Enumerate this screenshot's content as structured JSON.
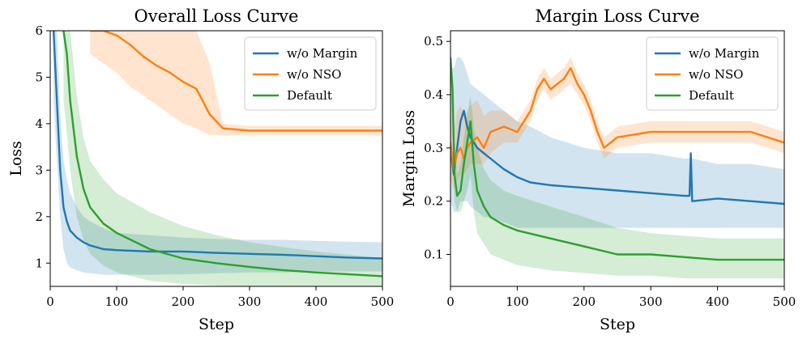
{
  "chart_data": [
    {
      "type": "line",
      "title": "Overall Loss Curve",
      "xlabel": "Step",
      "ylabel": "Loss",
      "xlim": [
        0,
        500
      ],
      "ylim": [
        0.5,
        6
      ],
      "xticks": [
        0,
        100,
        200,
        300,
        400,
        500
      ],
      "yticks": [
        1,
        2,
        3,
        4,
        5,
        6
      ],
      "grid": false,
      "legend": "top-right",
      "series": [
        {
          "name": "w/o Margin",
          "color": "#1f77b4",
          "x": [
            5,
            10,
            15,
            20,
            25,
            30,
            40,
            50,
            60,
            80,
            100,
            150,
            200,
            250,
            300,
            350,
            400,
            450,
            500
          ],
          "y": [
            6.0,
            4.5,
            3.0,
            2.2,
            1.9,
            1.7,
            1.55,
            1.45,
            1.38,
            1.3,
            1.28,
            1.25,
            1.25,
            1.22,
            1.2,
            1.18,
            1.15,
            1.12,
            1.1
          ],
          "band_lower": [
            4.5,
            3.2,
            2.0,
            1.3,
            1.0,
            0.9,
            0.85,
            0.8,
            0.78,
            0.75,
            0.75,
            0.75,
            0.76,
            0.78,
            0.8,
            0.8,
            0.82,
            0.82,
            0.82
          ],
          "band_upper": [
            6.0,
            6.0,
            4.2,
            3.2,
            2.8,
            2.5,
            2.2,
            2.0,
            1.9,
            1.75,
            1.65,
            1.6,
            1.55,
            1.52,
            1.5,
            1.5,
            1.48,
            1.46,
            1.45
          ]
        },
        {
          "name": "w/o NSO",
          "color": "#ff7f0e",
          "x": [
            60,
            80,
            100,
            120,
            140,
            160,
            180,
            200,
            220,
            240,
            260,
            300,
            350,
            400,
            450,
            500
          ],
          "y": [
            6.0,
            6.0,
            5.9,
            5.7,
            5.45,
            5.25,
            5.1,
            4.9,
            4.75,
            4.2,
            3.9,
            3.85,
            3.85,
            3.85,
            3.85,
            3.85
          ],
          "band_lower": [
            5.5,
            5.3,
            5.1,
            4.8,
            4.6,
            4.4,
            4.2,
            4.0,
            3.9,
            3.75,
            3.75,
            3.75,
            3.75,
            3.75,
            3.75,
            3.75
          ],
          "band_upper": [
            6.0,
            6.0,
            6.0,
            6.0,
            6.0,
            6.0,
            6.0,
            6.0,
            6.0,
            5.3,
            4.0,
            3.95,
            3.95,
            3.95,
            3.95,
            3.95
          ]
        },
        {
          "name": "Default",
          "color": "#2ca02c",
          "x": [
            20,
            25,
            30,
            40,
            50,
            60,
            80,
            100,
            150,
            200,
            250,
            300,
            350,
            400,
            450,
            500
          ],
          "y": [
            6.0,
            5.5,
            4.5,
            3.3,
            2.6,
            2.2,
            1.85,
            1.65,
            1.3,
            1.1,
            1.0,
            0.92,
            0.85,
            0.8,
            0.76,
            0.72
          ],
          "band_lower": [
            4.5,
            3.8,
            3.0,
            2.0,
            1.5,
            1.2,
            0.95,
            0.8,
            0.62,
            0.55,
            0.52,
            0.5,
            0.5,
            0.5,
            0.5,
            0.5
          ],
          "band_upper": [
            6.0,
            6.0,
            6.0,
            4.6,
            3.7,
            3.2,
            2.8,
            2.5,
            2.1,
            1.8,
            1.6,
            1.45,
            1.35,
            1.25,
            1.18,
            1.1
          ]
        }
      ]
    },
    {
      "type": "line",
      "title": "Margin Loss Curve",
      "xlabel": "Step",
      "ylabel": "Margin Loss",
      "xlim": [
        0,
        500
      ],
      "ylim": [
        0.04,
        0.52
      ],
      "xticks": [
        0,
        100,
        200,
        300,
        400,
        500
      ],
      "yticks": [
        0.1,
        0.2,
        0.3,
        0.4,
        0.5
      ],
      "grid": false,
      "legend": "top-right",
      "series": [
        {
          "name": "w/o Margin",
          "color": "#1f77b4",
          "x": [
            0,
            5,
            10,
            15,
            20,
            25,
            30,
            40,
            50,
            60,
            80,
            100,
            120,
            150,
            200,
            250,
            300,
            350,
            358,
            360,
            362,
            400,
            450,
            500
          ],
          "y": [
            0.3,
            0.25,
            0.3,
            0.35,
            0.37,
            0.34,
            0.32,
            0.3,
            0.29,
            0.28,
            0.26,
            0.245,
            0.235,
            0.23,
            0.225,
            0.22,
            0.215,
            0.21,
            0.21,
            0.29,
            0.2,
            0.205,
            0.2,
            0.195
          ],
          "band_lower": [
            0.2,
            0.18,
            0.18,
            0.2,
            0.2,
            0.2,
            0.19,
            0.18,
            0.17,
            0.17,
            0.16,
            0.15,
            0.15,
            0.15,
            0.15,
            0.15,
            0.15,
            0.15,
            0.15,
            0.15,
            0.15,
            0.15,
            0.15,
            0.15
          ],
          "band_upper": [
            0.45,
            0.45,
            0.47,
            0.47,
            0.46,
            0.44,
            0.42,
            0.41,
            0.4,
            0.39,
            0.37,
            0.35,
            0.34,
            0.32,
            0.3,
            0.29,
            0.29,
            0.28,
            0.28,
            0.28,
            0.28,
            0.27,
            0.27,
            0.26
          ]
        },
        {
          "name": "w/o NSO",
          "color": "#ff7f0e",
          "x": [
            0,
            5,
            10,
            15,
            20,
            25,
            30,
            40,
            50,
            60,
            80,
            100,
            120,
            130,
            140,
            150,
            160,
            170,
            180,
            190,
            200,
            210,
            220,
            230,
            250,
            300,
            350,
            400,
            450,
            500
          ],
          "y": [
            0.31,
            0.26,
            0.29,
            0.3,
            0.28,
            0.3,
            0.31,
            0.32,
            0.3,
            0.33,
            0.34,
            0.33,
            0.37,
            0.41,
            0.43,
            0.41,
            0.42,
            0.43,
            0.45,
            0.42,
            0.4,
            0.37,
            0.33,
            0.3,
            0.32,
            0.33,
            0.33,
            0.33,
            0.33,
            0.31
          ],
          "band_lower": [
            0.24,
            0.22,
            0.24,
            0.25,
            0.25,
            0.26,
            0.27,
            0.27,
            0.27,
            0.29,
            0.31,
            0.31,
            0.35,
            0.39,
            0.41,
            0.39,
            0.4,
            0.41,
            0.42,
            0.4,
            0.38,
            0.35,
            0.31,
            0.28,
            0.3,
            0.31,
            0.31,
            0.31,
            0.31,
            0.29
          ],
          "band_upper": [
            0.38,
            0.33,
            0.37,
            0.38,
            0.36,
            0.37,
            0.38,
            0.39,
            0.36,
            0.37,
            0.37,
            0.35,
            0.39,
            0.43,
            0.45,
            0.43,
            0.44,
            0.45,
            0.47,
            0.44,
            0.42,
            0.39,
            0.35,
            0.32,
            0.34,
            0.35,
            0.35,
            0.35,
            0.35,
            0.33
          ]
        },
        {
          "name": "Default",
          "color": "#2ca02c",
          "x": [
            0,
            3,
            6,
            10,
            15,
            20,
            25,
            30,
            35,
            40,
            50,
            60,
            80,
            100,
            150,
            200,
            250,
            300,
            350,
            400,
            450,
            500
          ],
          "y": [
            0.47,
            0.41,
            0.25,
            0.21,
            0.22,
            0.27,
            0.31,
            0.35,
            0.27,
            0.22,
            0.19,
            0.17,
            0.155,
            0.145,
            0.13,
            0.115,
            0.1,
            0.1,
            0.095,
            0.09,
            0.09,
            0.09
          ],
          "band_lower": [
            0.42,
            0.33,
            0.2,
            0.18,
            0.18,
            0.2,
            0.22,
            0.25,
            0.18,
            0.14,
            0.12,
            0.1,
            0.09,
            0.08,
            0.07,
            0.065,
            0.06,
            0.06,
            0.055,
            0.055,
            0.055,
            0.055
          ],
          "band_upper": [
            0.48,
            0.44,
            0.3,
            0.25,
            0.27,
            0.32,
            0.36,
            0.4,
            0.34,
            0.3,
            0.26,
            0.24,
            0.22,
            0.21,
            0.19,
            0.17,
            0.15,
            0.14,
            0.135,
            0.13,
            0.13,
            0.13
          ]
        }
      ]
    }
  ]
}
